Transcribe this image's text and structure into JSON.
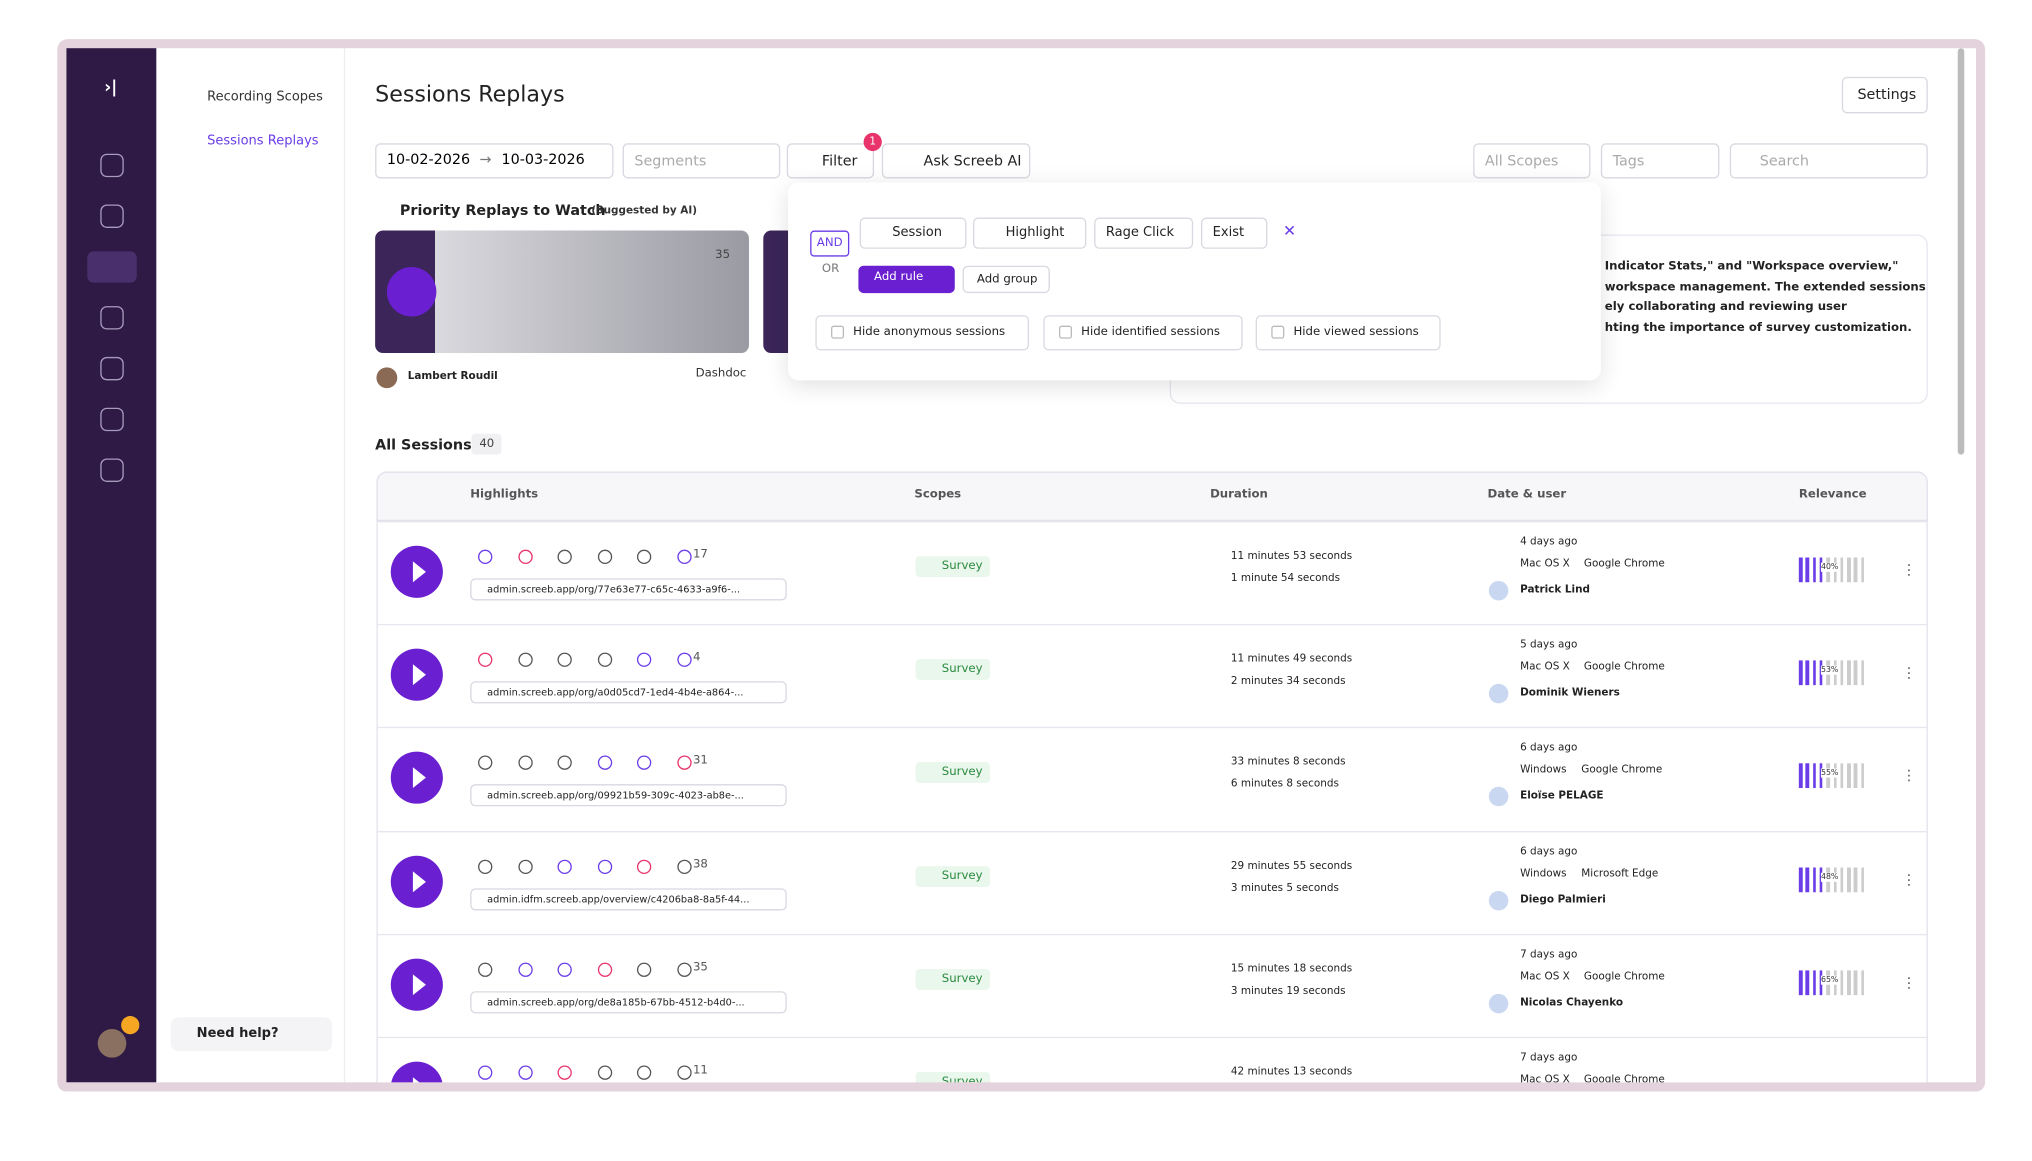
{
  "nav": {
    "items": [
      "Recording Scopes",
      "Sessions Replays"
    ],
    "help": "Need help?"
  },
  "header": {
    "title": "Sessions Replays",
    "settings": "Settings"
  },
  "toolbar": {
    "date_from": "10-02-2026",
    "date_to": "10-03-2026",
    "segments": "Segments",
    "filter": "Filter",
    "filter_badge": "1",
    "ask_ai": "Ask Screeb AI",
    "scopes": "All Scopes",
    "tags": "Tags",
    "search": "Search"
  },
  "priority": {
    "title": "Priority Replays to Watch",
    "subtitle": "(Suggested by AI)",
    "card": {
      "user": "Lambert Roudil",
      "tag": "Dashdoc",
      "count": "35"
    },
    "summary": [
      "Indicator Stats,\" and \"Workspace overview,\"",
      "workspace management. The extended sessions",
      "ely collaborating and reviewing user",
      "hting the importance of survey customization."
    ]
  },
  "filter_popup": {
    "and": "AND",
    "or": "OR",
    "rules": [
      "Session",
      "Highlight",
      "Rage Click",
      "Exist"
    ],
    "add_rule": "Add rule",
    "add_group": "Add group",
    "checkboxes": [
      "Hide anonymous sessions",
      "Hide identified sessions",
      "Hide viewed sessions"
    ]
  },
  "sessions": {
    "title": "All Sessions",
    "count": "40",
    "columns": [
      "Highlights",
      "Scopes",
      "Duration",
      "Date & user",
      "Relevance"
    ],
    "rows": [
      {
        "count": "17",
        "url": "admin.screeb.app/org/77e63e77-c65c-4633-a9f6-...",
        "scope": "Survey",
        "duration": "11 minutes 53 seconds",
        "active": "1 minute 54 seconds",
        "date": "4 days ago",
        "os": "Mac OS X",
        "browser": "Google Chrome",
        "user": "Patrick Lind",
        "relevance": "40%"
      },
      {
        "count": "4",
        "url": "admin.screeb.app/org/a0d05cd7-1ed4-4b4e-a864-...",
        "scope": "Survey",
        "duration": "11 minutes 49 seconds",
        "active": "2 minutes 34 seconds",
        "date": "5 days ago",
        "os": "Mac OS X",
        "browser": "Google Chrome",
        "user": "Dominik Wieners",
        "relevance": "53%"
      },
      {
        "count": "31",
        "url": "admin.screeb.app/org/09921b59-309c-4023-ab8e-...",
        "scope": "Survey",
        "duration": "33 minutes 8 seconds",
        "active": "6 minutes 8 seconds",
        "date": "6 days ago",
        "os": "Windows",
        "browser": "Google Chrome",
        "user": "Eloïse PELAGE",
        "relevance": "55%"
      },
      {
        "count": "38",
        "url": "admin.idfm.screeb.app/overview/c4206ba8-8a5f-44...",
        "scope": "Survey",
        "duration": "29 minutes 55 seconds",
        "active": "3 minutes 5 seconds",
        "date": "6 days ago",
        "os": "Windows",
        "browser": "Microsoft Edge",
        "user": "Diego Palmieri",
        "relevance": "48%"
      },
      {
        "count": "35",
        "url": "admin.screeb.app/org/de8a185b-67bb-4512-b4d0-...",
        "scope": "Survey",
        "duration": "15 minutes 18 seconds",
        "active": "3 minutes 19 seconds",
        "date": "7 days ago",
        "os": "Mac OS X",
        "browser": "Google Chrome",
        "user": "Nicolas Chayenko",
        "relevance": "65%"
      },
      {
        "count": "11",
        "scope": "Survey",
        "duration": "42 minutes 13 seconds",
        "date": "7 days ago",
        "os": "Mac OS X",
        "browser": "Google Chrome"
      }
    ]
  }
}
